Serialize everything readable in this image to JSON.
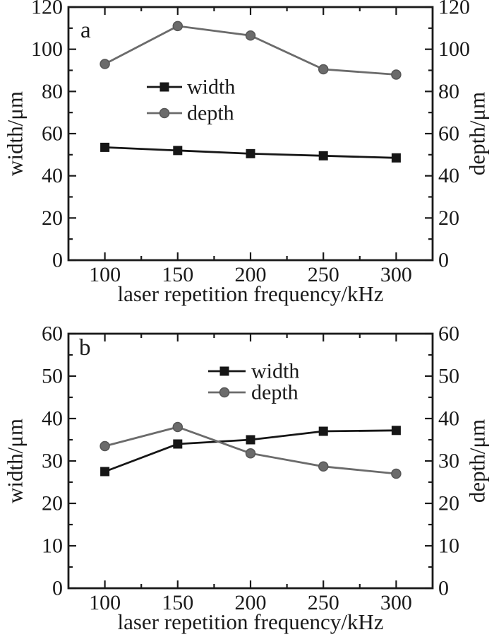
{
  "figure": {
    "background": "#ffffff",
    "text_color": "#1a1a1a",
    "axis_color": "#1a1a1a"
  },
  "chart_data": [
    {
      "panel_label": "a",
      "type": "line",
      "title": "",
      "xlabel": "laser repetition frequency/kHz",
      "ylabel_left": "width/μm",
      "ylabel_right": "depth/μm",
      "x": [
        100,
        150,
        200,
        250,
        300
      ],
      "series": [
        {
          "name": "width",
          "marker": "square",
          "color": "#161616",
          "edge": "#161616",
          "values": [
            53.5,
            52,
            50.5,
            49.5,
            48.5
          ]
        },
        {
          "name": "depth",
          "marker": "circle",
          "color": "#6b6b6b",
          "edge": "#565656",
          "values": [
            93,
            111,
            106.5,
            90.5,
            88
          ]
        }
      ],
      "xlim": [
        75,
        325
      ],
      "ylim": [
        0,
        120
      ],
      "xticks": [
        100,
        150,
        200,
        250,
        300
      ],
      "yticks": [
        0,
        20,
        40,
        60,
        80,
        100,
        120
      ],
      "grid": false,
      "legend_position": "center-left-upper",
      "legend_entries": [
        "width",
        "depth"
      ]
    },
    {
      "panel_label": "b",
      "type": "line",
      "title": "",
      "xlabel": "laser repetition frequency/kHz",
      "ylabel_left": "width/μm",
      "ylabel_right": "depth/μm",
      "x": [
        100,
        150,
        200,
        250,
        300
      ],
      "series": [
        {
          "name": "width",
          "marker": "square",
          "color": "#161616",
          "edge": "#161616",
          "values": [
            27.5,
            34,
            35,
            37,
            37.2
          ]
        },
        {
          "name": "depth",
          "marker": "circle",
          "color": "#6b6b6b",
          "edge": "#565656",
          "values": [
            33.5,
            38,
            31.8,
            28.7,
            27
          ]
        }
      ],
      "xlim": [
        75,
        325
      ],
      "ylim": [
        0,
        60
      ],
      "xticks": [
        100,
        150,
        200,
        250,
        300
      ],
      "yticks": [
        0,
        10,
        20,
        30,
        40,
        50,
        60
      ],
      "grid": false,
      "legend_position": "upper-center",
      "legend_entries": [
        "width",
        "depth"
      ]
    }
  ]
}
